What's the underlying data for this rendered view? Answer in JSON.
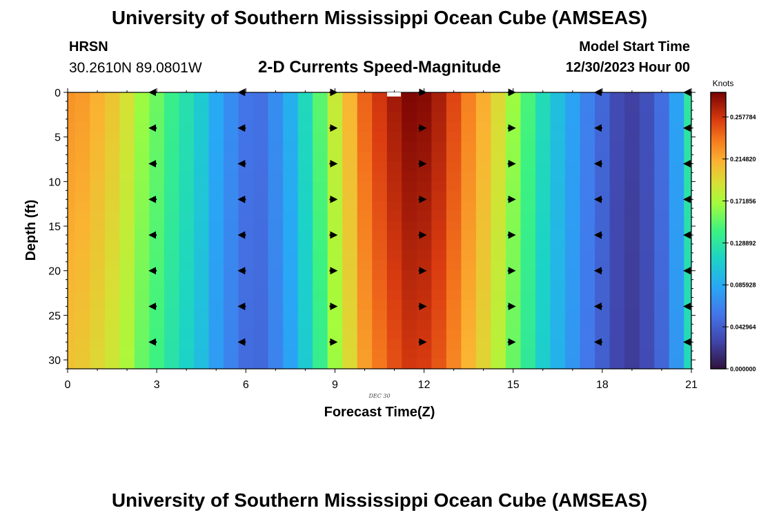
{
  "header": {
    "title": "University of Southern Mississippi Ocean Cube (AMSEAS)",
    "station_name": "HRSN",
    "station_coords": "30.2610N  89.0801W",
    "subtitle": "2-D Currents Speed-Magnitude",
    "model_start_label": "Model Start Time",
    "model_start_value": "12/30/2023 Hour 00"
  },
  "footer": {
    "title": "University of Southern Mississippi Ocean Cube (AMSEAS)"
  },
  "chart_data": {
    "type": "heatmap",
    "title": "2-D Currents Speed-Magnitude",
    "xlabel": "Forecast Time(Z)",
    "ylabel": "Depth (ft)",
    "date_label": "DEC 30",
    "xlim": [
      0,
      21
    ],
    "ylim": [
      31,
      0
    ],
    "x_ticks": [
      0,
      3,
      6,
      9,
      12,
      15,
      18,
      21
    ],
    "y_ticks": [
      0,
      5,
      10,
      15,
      20,
      25,
      30
    ],
    "colorbar": {
      "label": "Knots",
      "min": 0.0,
      "max": 0.283,
      "ticks": [
        "0.000000",
        "0.042964",
        "0.085928",
        "0.128892",
        "0.171856",
        "0.214820",
        "0.257784"
      ],
      "tick_values": [
        0.0,
        0.042964,
        0.085928,
        0.128892,
        0.171856,
        0.21482,
        0.257784
      ]
    },
    "time_steps": [
      0,
      0.5,
      1,
      1.5,
      2,
      2.5,
      3,
      3.5,
      4,
      4.5,
      5,
      5.5,
      6,
      6.5,
      7,
      7.5,
      8,
      8.5,
      9,
      9.5,
      10,
      10.5,
      11,
      11.5,
      12,
      12.5,
      13,
      13.5,
      14,
      14.5,
      15,
      15.5,
      16,
      16.5,
      17,
      17.5,
      18,
      18.5,
      19,
      19.5,
      20,
      20.5,
      21
    ],
    "speed_knots": [
      0.225,
      0.222,
      0.214,
      0.204,
      0.19,
      0.168,
      0.155,
      0.138,
      0.124,
      0.108,
      0.086,
      0.07,
      0.056,
      0.054,
      0.07,
      0.09,
      0.118,
      0.15,
      0.184,
      0.212,
      0.242,
      0.258,
      0.272,
      0.282,
      0.28,
      0.27,
      0.252,
      0.232,
      0.215,
      0.194,
      0.168,
      0.145,
      0.12,
      0.1,
      0.082,
      0.063,
      0.048,
      0.032,
      0.026,
      0.035,
      0.052,
      0.082,
      0.13
    ],
    "depth_gradient": "speed decreases slightly with depth",
    "vector_times": [
      3,
      6,
      9,
      12,
      15,
      18,
      21
    ],
    "vector_depths": [
      0,
      4,
      8,
      12,
      16,
      20,
      24,
      28
    ],
    "vector_directions": [
      "W",
      "W",
      "E",
      "E",
      "E",
      "W",
      "W"
    ]
  }
}
